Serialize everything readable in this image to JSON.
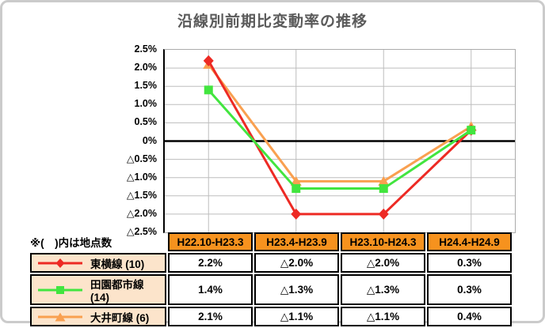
{
  "page_title": "沿線別前期比変動率の推移",
  "note": "※(　)内は地点数",
  "colors": {
    "title_text": "#5A5A5A",
    "card_border": "#CBCBCB",
    "grid_line": "#BDBDBD",
    "zero_line": "#000000",
    "header_bg": "#F6921E",
    "legend_bg": "#FCE4CB",
    "red_series": "#ED2A24",
    "green_series": "#42E53F",
    "orange_series": "#F9A050"
  },
  "chart_data": {
    "type": "line",
    "title": "沿線別前期比変動率の推移",
    "categories": [
      "H22.10-H23.3",
      "H23.4-H23.9",
      "H23.10-H24.3",
      "H24.4-H24.9"
    ],
    "xlabel": "",
    "ylabel": "",
    "ylim": [
      -2.5,
      2.5
    ],
    "ytick_step": 0.5,
    "ytick_labels": [
      "2.5%",
      "2.0%",
      "1.5%",
      "1.0%",
      "0.5%",
      "0%",
      "△0.5%",
      "△1.0%",
      "△1.5%",
      "△2.0%",
      "△2.5%"
    ],
    "grid": true,
    "legend_position": "table-left-column",
    "series": [
      {
        "name": "東横線 (10)",
        "marker": "diamond",
        "color": "#ED2A24",
        "values": [
          2.2,
          -2.0,
          -2.0,
          0.3
        ],
        "display_values": [
          "2.2%",
          "△2.0%",
          "△2.0%",
          "0.3%"
        ]
      },
      {
        "name": "田園都市線 (14)",
        "marker": "square",
        "color": "#42E53F",
        "values": [
          1.4,
          -1.3,
          -1.3,
          0.3
        ],
        "display_values": [
          "1.4%",
          "△1.3%",
          "△1.3%",
          "0.3%"
        ]
      },
      {
        "name": "大井町線 (6)",
        "marker": "triangle",
        "color": "#F9A050",
        "values": [
          2.1,
          -1.1,
          -1.1,
          0.4
        ],
        "display_values": [
          "2.1%",
          "△1.1%",
          "△1.1%",
          "0.4%"
        ]
      }
    ]
  }
}
